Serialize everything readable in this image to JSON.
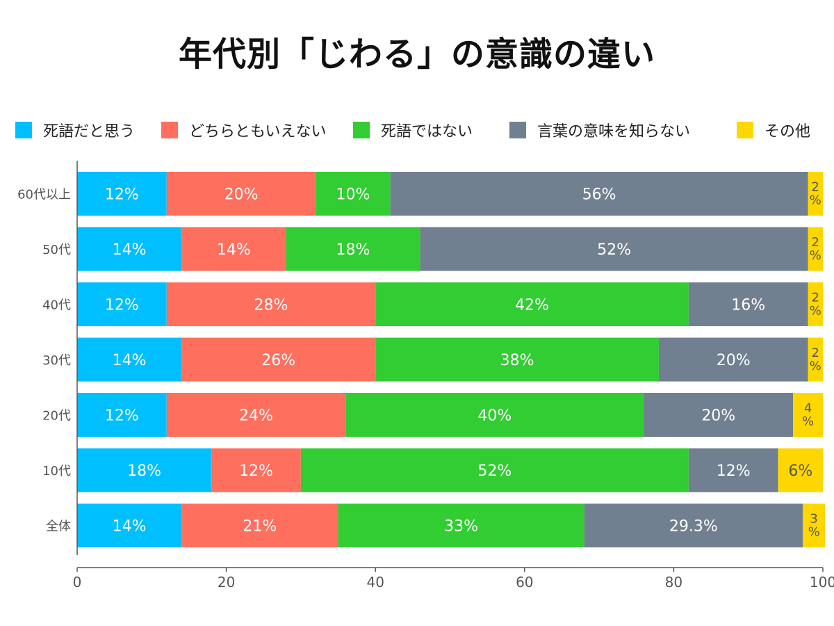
{
  "title": "年代別「じわる」の意識の違い",
  "chart_data": {
    "type": "bar",
    "orientation": "horizontal",
    "stacked": true,
    "title": "年代別「じわる」の意識の違い",
    "xlabel": "",
    "ylabel": "",
    "xlim": [
      0,
      100
    ],
    "xticks": [
      0,
      20,
      40,
      60,
      80,
      100
    ],
    "legend_position": "top",
    "categories": [
      "60代以上",
      "50代",
      "40代",
      "30代",
      "20代",
      "10代",
      "全体"
    ],
    "series": [
      {
        "name": "死語だと思う",
        "color": "#00BFFF",
        "values": [
          12,
          14,
          12,
          14,
          12,
          18,
          14
        ]
      },
      {
        "name": "どちらともいえない",
        "color": "#FF6F5E",
        "values": [
          20,
          14,
          28,
          26,
          24,
          12,
          21
        ]
      },
      {
        "name": "死語ではない",
        "color": "#32CD32",
        "values": [
          10,
          18,
          42,
          38,
          40,
          52,
          33
        ]
      },
      {
        "name": "言葉の意味を知らない",
        "color": "#708090",
        "values": [
          56,
          52,
          16,
          20,
          20,
          12,
          29.3
        ]
      },
      {
        "name": "その他",
        "color": "#FFD700",
        "values": [
          2,
          2,
          2,
          2,
          4,
          6,
          3
        ]
      }
    ],
    "data_labels": [
      [
        "12%",
        "20%",
        "10%",
        "56%",
        "2\n%"
      ],
      [
        "14%",
        "14%",
        "18%",
        "52%",
        "2\n%"
      ],
      [
        "12%",
        "28%",
        "42%",
        "16%",
        "2\n%"
      ],
      [
        "14%",
        "26%",
        "38%",
        "20%",
        "2\n%"
      ],
      [
        "12%",
        "24%",
        "40%",
        "20%",
        "4\n%"
      ],
      [
        "18%",
        "12%",
        "52%",
        "12%",
        "6%"
      ],
      [
        "14%",
        "21%",
        "33%",
        "29.3%",
        "3\n%"
      ]
    ]
  }
}
